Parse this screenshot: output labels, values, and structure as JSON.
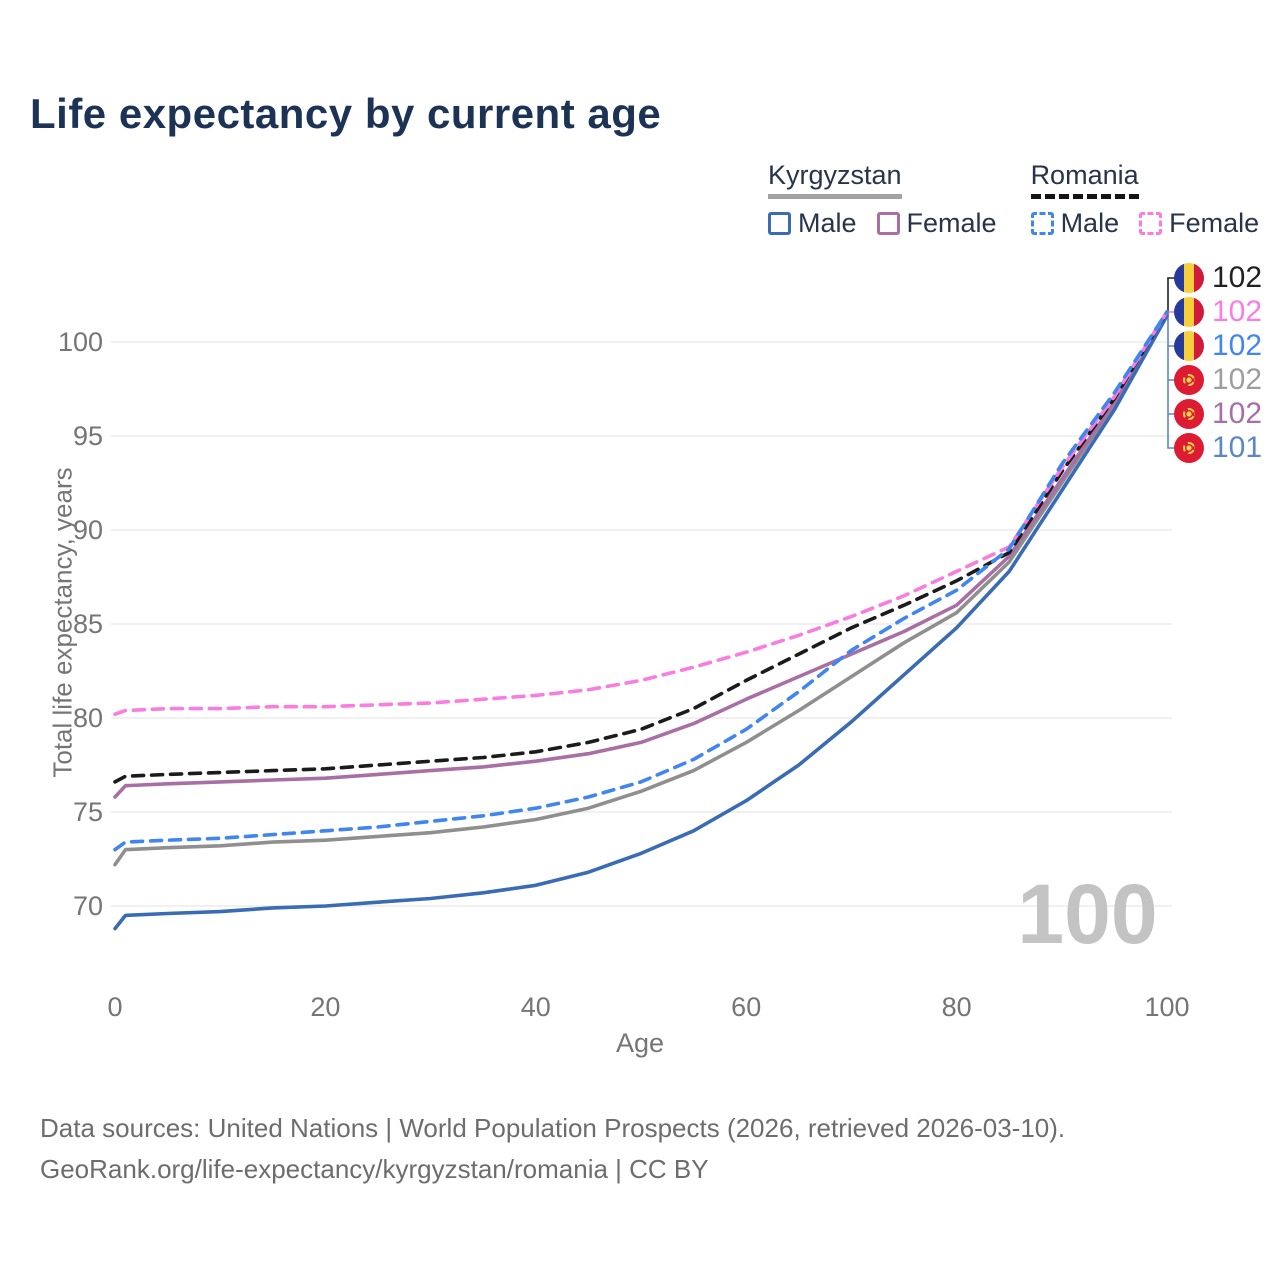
{
  "title": "Life expectancy by current age",
  "legend": {
    "groups": [
      {
        "label": "Kyrgyzstan",
        "underline_color": "#a3a3a3",
        "underline_style": "solid",
        "items": [
          {
            "label": "Male",
            "color": "#3a6cb4",
            "dashed": false
          },
          {
            "label": "Female",
            "color": "#a96fa4",
            "dashed": false
          }
        ]
      },
      {
        "label": "Romania",
        "underline_color": "#141414",
        "underline_style": "dashed",
        "items": [
          {
            "label": "Male",
            "color": "#4186f0",
            "dashed": true
          },
          {
            "label": "Female",
            "color": "#f97ce0",
            "dashed": true
          }
        ]
      }
    ]
  },
  "chart_data": {
    "type": "line",
    "title": "Life expectancy by current age",
    "xlabel": "Age",
    "ylabel": "Total life expectancy, years",
    "xlim": [
      0,
      100
    ],
    "ylim": [
      68,
      102
    ],
    "xticks": [
      0,
      20,
      40,
      60,
      80,
      100
    ],
    "yticks": [
      70,
      75,
      80,
      85,
      90,
      95,
      100
    ],
    "grid": "horizontal-only",
    "gridline_color": "#e8e8e8",
    "axis_text_color": "#757575",
    "x": [
      0,
      1,
      5,
      10,
      15,
      20,
      25,
      30,
      35,
      40,
      45,
      50,
      55,
      60,
      65,
      70,
      75,
      80,
      85,
      90,
      95,
      100
    ],
    "series": [
      {
        "name": "Kyrgyzstan Both sexes",
        "country": "Kyrgyzstan",
        "sex": "both",
        "color": "#8f8f8f",
        "dashed": false,
        "values": [
          72.2,
          73.0,
          73.1,
          73.2,
          73.4,
          73.5,
          73.7,
          73.9,
          74.2,
          74.6,
          75.2,
          76.1,
          77.2,
          78.7,
          80.4,
          82.2,
          84.0,
          85.6,
          88.3,
          92.5,
          96.7,
          101.5
        ]
      },
      {
        "name": "Kyrgyzstan Female",
        "country": "Kyrgyzstan",
        "sex": "female",
        "color": "#a96fa4",
        "dashed": false,
        "values": [
          75.8,
          76.4,
          76.5,
          76.6,
          76.7,
          76.8,
          77.0,
          77.2,
          77.4,
          77.7,
          78.1,
          78.7,
          79.7,
          81.0,
          82.2,
          83.4,
          84.6,
          86.0,
          88.6,
          92.7,
          96.8,
          101.5
        ]
      },
      {
        "name": "Kyrgyzstan Male",
        "country": "Kyrgyzstan",
        "sex": "male",
        "color": "#3a6cb4",
        "dashed": false,
        "values": [
          68.8,
          69.5,
          69.6,
          69.7,
          69.9,
          70.0,
          70.2,
          70.4,
          70.7,
          71.1,
          71.8,
          72.8,
          74.0,
          75.6,
          77.5,
          79.8,
          82.3,
          84.8,
          87.8,
          92.1,
          96.4,
          101.4
        ]
      },
      {
        "name": "Romania Both sexes",
        "country": "Romania",
        "sex": "both",
        "color": "#1b1b1b",
        "dashed": true,
        "values": [
          76.6,
          76.9,
          77.0,
          77.1,
          77.2,
          77.3,
          77.5,
          77.7,
          77.9,
          78.2,
          78.7,
          79.4,
          80.5,
          82.0,
          83.4,
          84.8,
          86.0,
          87.3,
          88.8,
          93.1,
          97.0,
          101.6
        ]
      },
      {
        "name": "Romania Female",
        "country": "Romania",
        "sex": "female",
        "color": "#f97ce0",
        "dashed": true,
        "values": [
          80.2,
          80.4,
          80.5,
          80.5,
          80.6,
          80.6,
          80.7,
          80.8,
          81.0,
          81.2,
          81.5,
          82.0,
          82.7,
          83.5,
          84.4,
          85.4,
          86.5,
          87.8,
          89.1,
          93.3,
          97.1,
          101.6
        ]
      },
      {
        "name": "Romania Male",
        "country": "Romania",
        "sex": "male",
        "color": "#4186f0",
        "dashed": true,
        "values": [
          73.0,
          73.4,
          73.5,
          73.6,
          73.8,
          74.0,
          74.2,
          74.5,
          74.8,
          75.2,
          75.8,
          76.6,
          77.8,
          79.4,
          81.4,
          83.6,
          85.3,
          86.8,
          89.0,
          93.5,
          97.3,
          101.6
        ]
      }
    ],
    "legend_position": "top-right",
    "end_labels": [
      {
        "flag": "romania",
        "series": "Romania Both sexes",
        "value": "102",
        "color": "#212121"
      },
      {
        "flag": "romania",
        "series": "Romania Female",
        "value": "102",
        "color": "#fd7ce1"
      },
      {
        "flag": "romania",
        "series": "Romania Male",
        "value": "102",
        "color": "#4285f4"
      },
      {
        "flag": "kyrgyzstan",
        "series": "Kyrgyzstan Both sexes",
        "value": "102",
        "color": "#9e9e9e"
      },
      {
        "flag": "kyrgyzstan",
        "series": "Kyrgyzstan Female",
        "value": "102",
        "color": "#a76fa8"
      },
      {
        "flag": "kyrgyzstan",
        "series": "Kyrgyzstan Male",
        "value": "101",
        "color": "#5b87c5"
      }
    ]
  },
  "watermark": "100",
  "footer": {
    "line1": "Data sources: United Nations | World Population Prospects (2026, retrieved 2026-03-10).",
    "line2": "GeoRank.org/life-expectancy/kyrgyzstan/romania | CC BY"
  }
}
